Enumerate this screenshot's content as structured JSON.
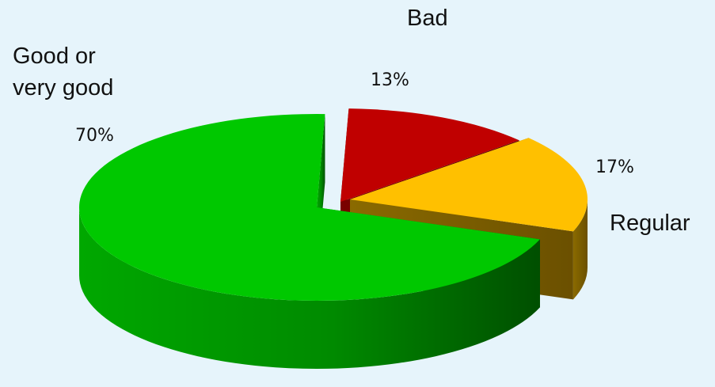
{
  "chart_data": {
    "type": "pie",
    "categories": [
      "Bad",
      "Regular",
      "Good or very good"
    ],
    "values": [
      13,
      17,
      70
    ],
    "value_labels": [
      "13%",
      "17%",
      "70%"
    ],
    "style": "3d-exploded",
    "label_lines": {
      "good": [
        "Good or",
        "very good"
      ]
    },
    "colors": {
      "Bad": "#C00000",
      "Regular": "#FFC000",
      "Good or very good": "#00C800",
      "background": "#E6F4FB"
    }
  }
}
